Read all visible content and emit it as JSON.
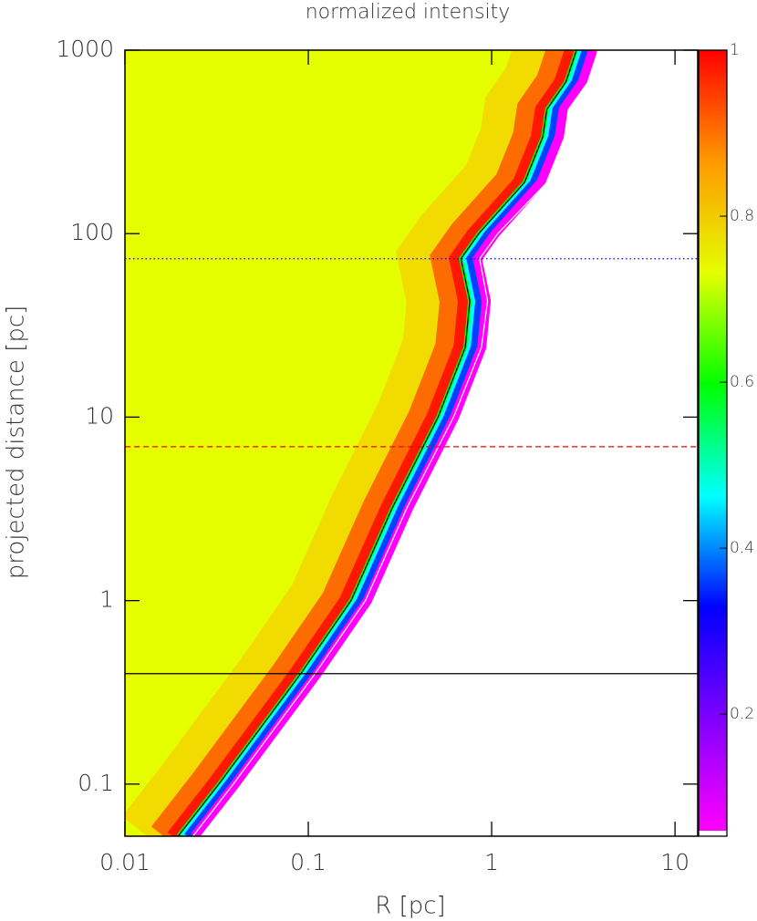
{
  "chart_data": {
    "type": "heatmap-profile",
    "title": "normalized intensity",
    "x_label": "R [pc]",
    "y_label": "projected distance [pc]",
    "xscale": "log",
    "yscale": "log",
    "xlim": [
      0.01,
      13.3
    ],
    "ylim": [
      0.052,
      1000
    ],
    "xticks": [
      0.01,
      0.1,
      1,
      10
    ],
    "yticks": [
      0.1,
      1,
      10,
      100,
      1000
    ],
    "background_color": "#e5ff00",
    "series": [
      {
        "color": "#000000",
        "x": [
          0.0195,
          0.0325,
          0.091,
          0.171,
          0.287,
          0.51,
          0.718,
          0.76,
          0.68,
          0.85,
          1.51,
          1.9,
          2.0,
          2.54,
          2.9
        ],
        "values": [
          0.052,
          0.1,
          0.4,
          1,
          3.2,
          10,
          24,
          43,
          73,
          100,
          190,
          337,
          475,
          670,
          1000
        ]
      },
      {
        "color": "#ffffff",
        "x": [
          0.0235,
          0.039,
          0.109,
          0.205,
          0.345,
          0.62,
          0.88,
          0.95,
          0.86,
          1.08,
          2.0,
          2.5,
          2.62,
          3.35,
          3.85
        ],
        "values": [
          0.052,
          0.1,
          0.4,
          1,
          3.2,
          10,
          24,
          43,
          73,
          100,
          190,
          337,
          475,
          670,
          1000
        ]
      }
    ],
    "hlines": [
      {
        "value": 0.4,
        "color": "#000000",
        "style": "solid"
      },
      {
        "value": 6.9,
        "color": "#ff0000",
        "style": "dashed"
      },
      {
        "value": 73,
        "color": "#0000ff",
        "style": "dotted"
      }
    ],
    "colorbar": {
      "lim": [
        0.053,
        1
      ],
      "ticks": [
        0.2,
        0.4,
        0.6,
        0.8,
        1
      ],
      "colors": [
        "#ff00ff",
        "#8000ff",
        "#0000ff",
        "#00ffff",
        "#00ff00",
        "#e5ff00",
        "#ff9900",
        "#ff0000"
      ]
    }
  }
}
